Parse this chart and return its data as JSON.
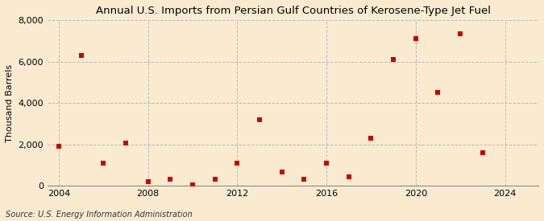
{
  "title": "Annual U.S. Imports from Persian Gulf Countries of Kerosene-Type Jet Fuel",
  "ylabel": "Thousand Barrels",
  "source": "Source: U.S. Energy Information Administration",
  "background_color": "#faebd0",
  "marker_color": "#cc0000",
  "years": [
    2004,
    2005,
    2006,
    2007,
    2008,
    2009,
    2010,
    2011,
    2012,
    2013,
    2014,
    2015,
    2016,
    2017,
    2018,
    2019,
    2020,
    2021,
    2022,
    2023
  ],
  "values": [
    1900,
    6300,
    1100,
    2050,
    200,
    300,
    50,
    300,
    1100,
    3200,
    650,
    300,
    1100,
    450,
    2300,
    6100,
    7100,
    4500,
    7350,
    1600
  ],
  "ylim": [
    0,
    8000
  ],
  "xlim": [
    2003.5,
    2025.5
  ],
  "yticks": [
    0,
    2000,
    4000,
    6000,
    8000
  ],
  "xticks": [
    2004,
    2008,
    2012,
    2016,
    2020,
    2024
  ],
  "grid_color": "#bbbbbb",
  "grid_linestyle": "--",
  "title_fontsize": 9.5,
  "label_fontsize": 8,
  "tick_fontsize": 8,
  "source_fontsize": 7
}
